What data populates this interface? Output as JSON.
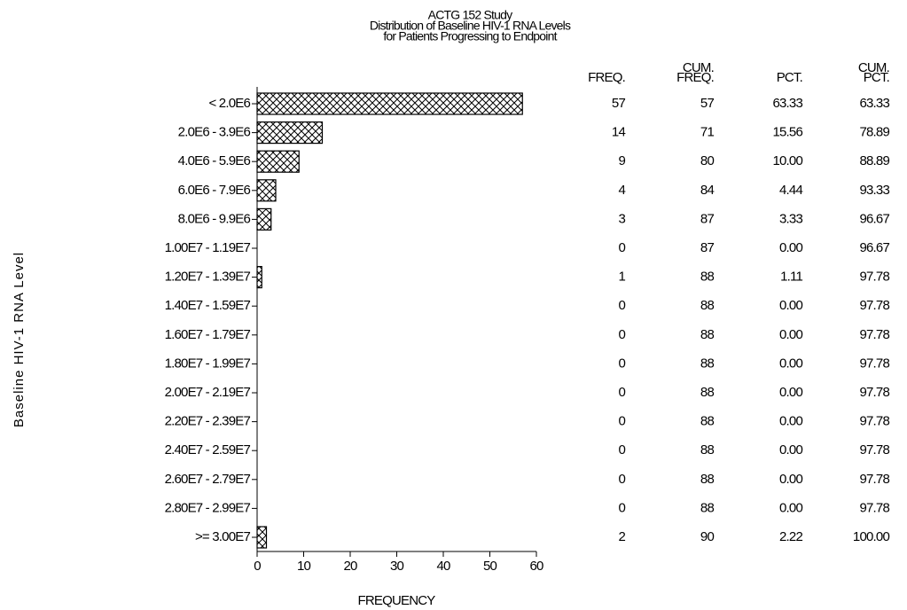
{
  "chart_data": {
    "type": "hbar",
    "title": [
      "ACTG 152 Study",
      "Distribution of Baseline HIV-1 RNA Levels",
      "for Patients Progressing to Endpoint"
    ],
    "categories": [
      "< 2.0E6",
      "2.0E6 - 3.9E6",
      "4.0E6 - 5.9E6",
      "6.0E6 - 7.9E6",
      "8.0E6 - 9.9E6",
      "1.00E7 - 1.19E7",
      "1.20E7 - 1.39E7",
      "1.40E7 - 1.59E7",
      "1.60E7 - 1.79E7",
      "1.80E7 - 1.99E7",
      "2.00E7 - 2.19E7",
      "2.20E7 - 2.39E7",
      "2.40E7 - 2.59E7",
      "2.60E7 - 2.79E7",
      "2.80E7 - 2.99E7",
      ">= 3.00E7"
    ],
    "values": [
      57,
      14,
      9,
      4,
      3,
      0,
      1,
      0,
      0,
      0,
      0,
      0,
      0,
      0,
      0,
      2
    ],
    "color": "#000000",
    "xlim": [
      0,
      60
    ],
    "xticks": [
      0,
      10,
      20,
      30,
      40,
      50,
      60
    ],
    "xlabel": "FREQUENCY",
    "ylabel": "Baseline HIV-1 RNA Level",
    "table": {
      "headers": [
        [
          "FREQ."
        ],
        [
          "CUM.",
          "FREQ."
        ],
        [
          "PCT."
        ],
        [
          "CUM.",
          "PCT."
        ]
      ],
      "cum_freq": [
        57,
        71,
        80,
        84,
        87,
        87,
        88,
        88,
        88,
        88,
        88,
        88,
        88,
        88,
        88,
        90
      ],
      "pct": [
        "63.33",
        "15.56",
        "10.00",
        "4.44",
        "3.33",
        "0.00",
        "1.11",
        "0.00",
        "0.00",
        "0.00",
        "0.00",
        "0.00",
        "0.00",
        "0.00",
        "0.00",
        "2.22"
      ],
      "cum_pct": [
        "63.33",
        "78.89",
        "88.89",
        "93.33",
        "96.67",
        "96.67",
        "97.78",
        "97.78",
        "97.78",
        "97.78",
        "97.78",
        "97.78",
        "97.78",
        "97.78",
        "97.78",
        "100.00"
      ]
    }
  }
}
